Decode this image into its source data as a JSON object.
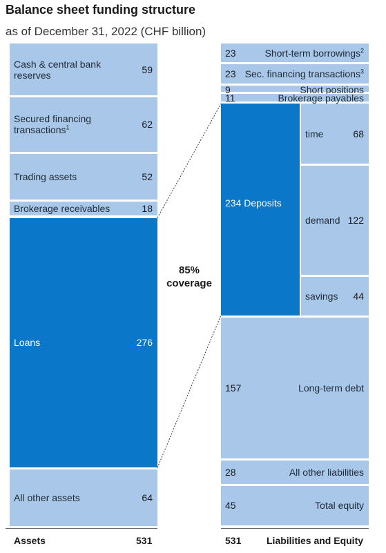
{
  "chart_data": {
    "type": "stacked-bar",
    "title": "Balance sheet funding structure",
    "subtitle": "as of December 31, 2022 (CHF billion)",
    "assets": {
      "label": "Assets",
      "total": "531",
      "items": [
        {
          "label": "Cash & central bank reserves",
          "value": 59
        },
        {
          "label": "Secured financing transactions",
          "note": "1",
          "value": 62
        },
        {
          "label": "Trading assets",
          "value": 52
        },
        {
          "label": "Brokerage receivables",
          "value": 18
        },
        {
          "label": "Loans",
          "value": 276,
          "highlight": true
        },
        {
          "label": "All other assets",
          "value": 64
        }
      ]
    },
    "liabilities": {
      "label": "Liabilities and Equity",
      "total": "531",
      "items": [
        {
          "label": "Short-term borrowings",
          "note": "2",
          "value": 23
        },
        {
          "label": "Sec. financing transactions",
          "note": "3",
          "value": 23
        },
        {
          "label": "Short positions",
          "value": 9
        },
        {
          "label": "Brokerage payables",
          "value": 11
        },
        {
          "label": "Deposits",
          "value": 234,
          "highlight": true,
          "breakdown": [
            {
              "label": "time",
              "value": 68
            },
            {
              "label": "demand",
              "value": 122
            },
            {
              "label": "savings",
              "value": 44
            }
          ]
        },
        {
          "label": "Long-term debt",
          "value": 157
        },
        {
          "label": "All other liabilities",
          "value": 28
        },
        {
          "label": "Total equity",
          "value": 45
        }
      ]
    },
    "annotation": {
      "line1": "85%",
      "line2": "coverage"
    },
    "colors": {
      "light": "#a8c7e9",
      "highlight": "#0a77c8"
    }
  }
}
